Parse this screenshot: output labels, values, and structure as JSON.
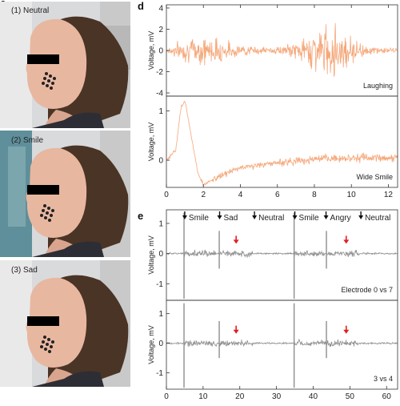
{
  "panels": {
    "c": {
      "letter": "c",
      "photos": [
        {
          "label": "(1) Neutral",
          "expression": "neutral"
        },
        {
          "label": "(2) Smile",
          "expression": "smile"
        },
        {
          "label": "(3) Sad",
          "expression": "sad"
        }
      ]
    },
    "d": {
      "letter": "d"
    },
    "e": {
      "letter": "e"
    }
  },
  "chart_data": [
    {
      "id": "d-laughing",
      "type": "line",
      "annotation": "Laughing",
      "ylabel": "Voltage, mV",
      "xlim": [
        0,
        12.5
      ],
      "ylim": [
        -4.3,
        4.3
      ],
      "yticks": [
        -4,
        -2,
        0,
        2,
        4
      ],
      "color": "#f5a77a",
      "series": [
        {
          "x": [
            0,
            1,
            2,
            3,
            4,
            5,
            6,
            7,
            8,
            9,
            10,
            11,
            12.5
          ],
          "amplitude": [
            0.6,
            1.4,
            2.0,
            1.5,
            0.7,
            0.5,
            0.5,
            1.0,
            2.6,
            3.6,
            1.8,
            0.5,
            0.3
          ]
        }
      ]
    },
    {
      "id": "d-wide-smile",
      "type": "line",
      "annotation": "Wide Smile",
      "ylabel": "Voltage, mV",
      "xlim": [
        0,
        12.5
      ],
      "ylim": [
        -0.55,
        1.3
      ],
      "yticks": [
        0,
        1
      ],
      "xticks": [
        0,
        2,
        4,
        6,
        8,
        10,
        12
      ],
      "color": "#f5a77a",
      "series": [
        {
          "x": [
            0,
            0.5,
            0.8,
            1.0,
            1.3,
            1.7,
            2.0,
            2.5,
            3,
            4,
            6,
            8,
            10,
            12.5
          ],
          "y": [
            0.0,
            0.2,
            1.1,
            1.2,
            0.6,
            -0.25,
            -0.5,
            -0.4,
            -0.3,
            -0.15,
            -0.05,
            0.02,
            0.05,
            0.05
          ]
        }
      ]
    },
    {
      "id": "e-electrode-0-vs-7",
      "type": "line",
      "annotation": "Electrode 0 vs 7",
      "ylabel": "Voltage, mV",
      "xlim": [
        0,
        63
      ],
      "ylim": [
        -1.55,
        1.45
      ],
      "yticks": [
        -1,
        0,
        1
      ],
      "color": "#8e8e8e",
      "events": [
        {
          "label": "Smile",
          "x": 5
        },
        {
          "label": "Sad",
          "x": 14.5
        },
        {
          "label": "Neutral",
          "x": 24
        },
        {
          "label": "Smile",
          "x": 35
        },
        {
          "label": "Angry",
          "x": 43.5
        },
        {
          "label": "Neutral",
          "x": 53
        }
      ],
      "highlights": [
        19,
        49
      ],
      "series": [
        {
          "spikes_x": [
            4.8,
            14.4,
            34.8,
            43.6
          ],
          "baseline": 0
        }
      ]
    },
    {
      "id": "e-3-vs-4",
      "type": "line",
      "annotation": "3 vs 4",
      "ylabel": "Voltage, mV",
      "xlim": [
        0,
        63
      ],
      "ylim": [
        -1.55,
        1.45
      ],
      "yticks": [
        -1,
        0,
        1
      ],
      "xticks": [
        0,
        10,
        20,
        30,
        40,
        50,
        60
      ],
      "color": "#8e8e8e",
      "highlights": [
        19,
        49
      ],
      "series": [
        {
          "spikes_x": [
            4.8,
            14.4,
            34.8,
            43.6
          ],
          "baseline": 0
        }
      ]
    }
  ]
}
